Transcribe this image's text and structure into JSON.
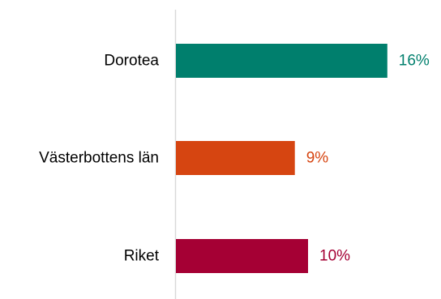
{
  "chart_data": {
    "type": "bar",
    "orientation": "horizontal",
    "categories": [
      "Dorotea",
      "Västerbottens län",
      "Riket"
    ],
    "values": [
      16,
      9,
      10
    ],
    "value_labels": [
      "16%",
      "9%",
      "10%"
    ],
    "colors": [
      "#007F6D",
      "#D64511",
      "#A50034"
    ],
    "axis_line_color": "#D9D9D9",
    "xlim": [
      0,
      20
    ],
    "title": "",
    "xlabel": "",
    "ylabel": "",
    "grid": false,
    "legend": "none"
  }
}
